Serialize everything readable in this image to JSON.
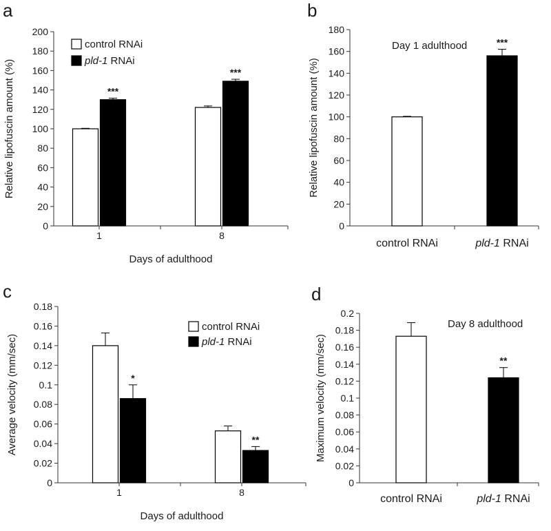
{
  "chart_data": [
    {
      "panel": "a",
      "type": "bar",
      "xlabel": "Days of adulthood",
      "ylabel": "Relative lipofuscin amount (%)",
      "ylim": [
        0,
        200
      ],
      "yticks": [
        "0",
        "20",
        "40",
        "60",
        "80",
        "100",
        "120",
        "140",
        "160",
        "180",
        "200"
      ],
      "categories": [
        "1",
        "8"
      ],
      "series": [
        {
          "name": "control RNAi",
          "fill": "#ffffff",
          "values": [
            100,
            122
          ],
          "errors": [
            0.5,
            1.5
          ]
        },
        {
          "name": "pld-1 RNAi",
          "name_italic": "pld-1",
          "name_rest": " RNAi",
          "fill": "#000000",
          "values": [
            130,
            149
          ],
          "errors": [
            1.5,
            2
          ]
        }
      ],
      "significance": [
        [
          "",
          "***"
        ],
        [
          "",
          "***"
        ]
      ],
      "legend": "top-left"
    },
    {
      "panel": "b",
      "type": "bar",
      "ylabel": "Relative lipofuscin amount (%)",
      "ylim": [
        0,
        180
      ],
      "yticks": [
        "0",
        "20",
        "40",
        "60",
        "80",
        "100",
        "120",
        "140",
        "160",
        "180"
      ],
      "annotation": "Day 1 adulthood",
      "bars": [
        {
          "label": "control  RNAi",
          "value": 100,
          "error": 0.5,
          "fill": "#ffffff",
          "sig": ""
        },
        {
          "label_italic": "pld-1",
          "label_rest": " RNAi",
          "value": 156,
          "error": 6,
          "fill": "#000000",
          "sig": "***"
        }
      ]
    },
    {
      "panel": "c",
      "type": "bar",
      "xlabel": "Days of adulthood",
      "ylabel": "Average velocity (mm/sec)",
      "ylim": [
        0,
        0.18
      ],
      "yticks": [
        "0",
        "0.02",
        "0.04",
        "0.06",
        "0.08",
        "0.1",
        "0.12",
        "0.14",
        "0.16",
        "0.18"
      ],
      "categories": [
        "1",
        "8"
      ],
      "series": [
        {
          "name": "control RNAi",
          "fill": "#ffffff",
          "values": [
            0.14,
            0.053
          ],
          "errors": [
            0.013,
            0.005
          ]
        },
        {
          "name": "pld-1 RNAi",
          "name_italic": "pld-1",
          "name_rest": " RNAi",
          "fill": "#000000",
          "values": [
            0.086,
            0.033
          ],
          "errors": [
            0.014,
            0.004
          ]
        }
      ],
      "significance": [
        [
          "",
          "*"
        ],
        [
          "",
          "**"
        ]
      ],
      "legend": "top-right"
    },
    {
      "panel": "d",
      "type": "bar",
      "ylabel": "Maximum velocity (mm/sec)",
      "ylim": [
        0,
        0.2
      ],
      "yticks": [
        "0",
        "0.02",
        "0.04",
        "0.06",
        "0.08",
        "0.1",
        "0.12",
        "0.14",
        "0.16",
        "0.18",
        "0.2"
      ],
      "annotation": "Day 8 adulthood",
      "bars": [
        {
          "label": "control  RNAi",
          "value": 0.173,
          "error": 0.016,
          "fill": "#ffffff",
          "sig": ""
        },
        {
          "label_italic": "pld-1",
          "label_rest": " RNAi",
          "value": 0.124,
          "error": 0.012,
          "fill": "#000000",
          "sig": "**"
        }
      ]
    }
  ]
}
